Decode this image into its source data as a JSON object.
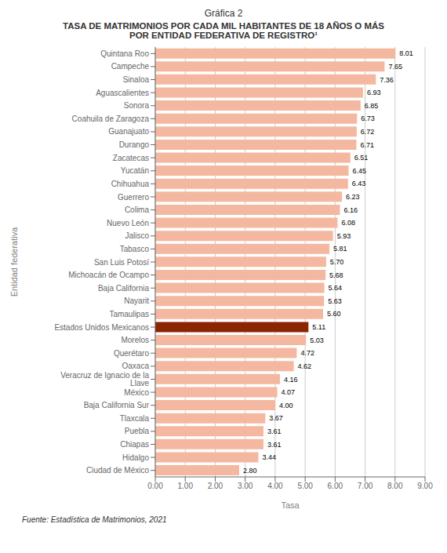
{
  "chart_data": {
    "type": "bar",
    "orientation": "horizontal",
    "title": "Gráfica 2",
    "subtitle": "TASA DE MATRIMONIOS POR CADA MIL HABITANTES DE 18 AÑOS O MÁS\nPOR ENTIDAD FEDERATIVA DE REGISTRO¹",
    "xlabel": "Tasa",
    "ylabel": "Entidad federativa",
    "annotations": [
      "Fuente: Estadística de Matrimonios, 2021"
    ],
    "categories": [
      "Quintana Roo",
      "Campeche",
      "Sinaloa",
      "Aguascalientes",
      "Sonora",
      "Coahuila de Zaragoza",
      "Guanajuato",
      "Durango",
      "Zacatecas",
      "Yucatán",
      "Chihuahua",
      "Guerrero",
      "Colima",
      "Nuevo León",
      "Jalisco",
      "Tabasco",
      "San Luis Potosí",
      "Michoacán de Ocampo",
      "Baja California",
      "Nayarit",
      "Tamaulipas",
      "Estados Unidos Mexicanos",
      "Morelos",
      "Querétaro",
      "Oaxaca",
      "Veracruz de Ignacio de la Llave",
      "México",
      "Baja California Sur",
      "Tlaxcala",
      "Puebla",
      "Chiapas",
      "Hidalgo",
      "Ciudad de México"
    ],
    "values": [
      8.01,
      7.65,
      7.36,
      6.93,
      6.85,
      6.73,
      6.72,
      6.71,
      6.51,
      6.45,
      6.43,
      6.23,
      6.16,
      6.08,
      5.93,
      5.81,
      5.7,
      5.68,
      5.64,
      5.63,
      5.6,
      5.11,
      5.03,
      4.72,
      4.62,
      4.16,
      4.07,
      4.0,
      3.67,
      3.61,
      3.61,
      3.44,
      2.8
    ],
    "value_labels": [
      "8.01",
      "7.65",
      "7.36",
      "6.93",
      "6.85",
      "6.73",
      "6.72",
      "6.71",
      "6.51",
      "6.45",
      "6.43",
      "6.23",
      "6.16",
      "6.08",
      "5.93",
      "5.81",
      "5.70",
      "5.68",
      "5.64",
      "5.63",
      "5.60",
      "5.11",
      "5.03",
      "4.72",
      "4.62",
      "4.16",
      "4.07",
      "4.00",
      "3.67",
      "3.61",
      "3.61",
      "3.44",
      "2.80"
    ],
    "colors": [
      "#F4B8A0",
      "#F4B8A0",
      "#F4B8A0",
      "#F4B8A0",
      "#F4B8A0",
      "#F4B8A0",
      "#F4B8A0",
      "#F4B8A0",
      "#F4B8A0",
      "#F4B8A0",
      "#F4B8A0",
      "#F4B8A0",
      "#F4B8A0",
      "#F4B8A0",
      "#F4B8A0",
      "#F4B8A0",
      "#F4B8A0",
      "#F4B8A0",
      "#F4B8A0",
      "#F4B8A0",
      "#F4B8A0",
      "#8B2500",
      "#F4B8A0",
      "#F4B8A0",
      "#F4B8A0",
      "#F4B8A0",
      "#F4B8A0",
      "#F4B8A0",
      "#F4B8A0",
      "#F4B8A0",
      "#F4B8A0",
      "#F4B8A0",
      "#F4B8A0"
    ],
    "xlim": [
      0,
      9.0
    ],
    "xticks": [
      {
        "value": 0,
        "label": "0.00"
      },
      {
        "value": 1,
        "label": "1.00"
      },
      {
        "value": 2,
        "label": "2.00"
      },
      {
        "value": 3,
        "label": "3.00"
      },
      {
        "value": 4,
        "label": "4.00"
      },
      {
        "value": 5,
        "label": "5.00"
      },
      {
        "value": 6,
        "label": "6.00"
      },
      {
        "value": 7,
        "label": "7.00"
      },
      {
        "value": 8,
        "label": "8.00"
      },
      {
        "value": 9,
        "label": "9.00"
      }
    ],
    "grid": true,
    "data_labels": true
  }
}
